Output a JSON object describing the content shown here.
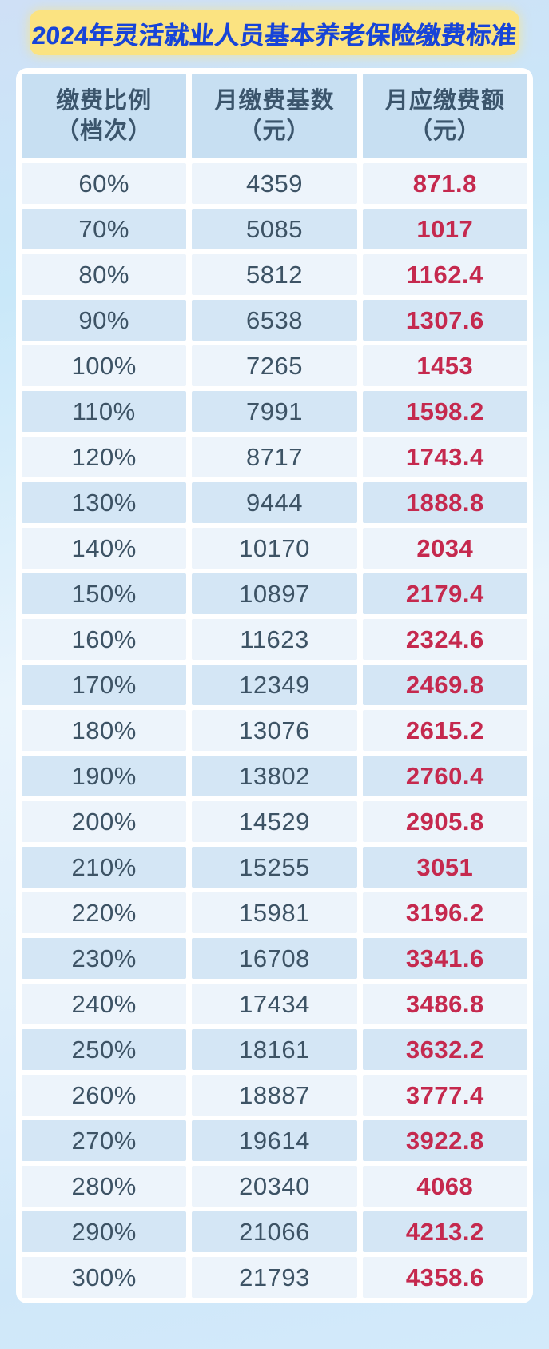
{
  "header": {
    "title": "2024年灵活就业人员基本养老保险缴费标准"
  },
  "chart_data": {
    "type": "table",
    "title": "2024年灵活就业人员基本养老保险缴费标准",
    "columns": [
      {
        "title": "缴费比例",
        "unit": "（档次）"
      },
      {
        "title": "月缴费基数",
        "unit": "（元）"
      },
      {
        "title": "月应缴费额",
        "unit": "（元）"
      }
    ],
    "rows": [
      {
        "ratio": "60%",
        "base": "4359",
        "amount": "871.8"
      },
      {
        "ratio": "70%",
        "base": "5085",
        "amount": "1017"
      },
      {
        "ratio": "80%",
        "base": "5812",
        "amount": "1162.4"
      },
      {
        "ratio": "90%",
        "base": "6538",
        "amount": "1307.6"
      },
      {
        "ratio": "100%",
        "base": "7265",
        "amount": "1453"
      },
      {
        "ratio": "110%",
        "base": "7991",
        "amount": "1598.2"
      },
      {
        "ratio": "120%",
        "base": "8717",
        "amount": "1743.4"
      },
      {
        "ratio": "130%",
        "base": "9444",
        "amount": "1888.8"
      },
      {
        "ratio": "140%",
        "base": "10170",
        "amount": "2034"
      },
      {
        "ratio": "150%",
        "base": "10897",
        "amount": "2179.4"
      },
      {
        "ratio": "160%",
        "base": "11623",
        "amount": "2324.6"
      },
      {
        "ratio": "170%",
        "base": "12349",
        "amount": "2469.8"
      },
      {
        "ratio": "180%",
        "base": "13076",
        "amount": "2615.2"
      },
      {
        "ratio": "190%",
        "base": "13802",
        "amount": "2760.4"
      },
      {
        "ratio": "200%",
        "base": "14529",
        "amount": "2905.8"
      },
      {
        "ratio": "210%",
        "base": "15255",
        "amount": "3051"
      },
      {
        "ratio": "220%",
        "base": "15981",
        "amount": "3196.2"
      },
      {
        "ratio": "230%",
        "base": "16708",
        "amount": "3341.6"
      },
      {
        "ratio": "240%",
        "base": "17434",
        "amount": "3486.8"
      },
      {
        "ratio": "250%",
        "base": "18161",
        "amount": "3632.2"
      },
      {
        "ratio": "260%",
        "base": "18887",
        "amount": "3777.4"
      },
      {
        "ratio": "270%",
        "base": "19614",
        "amount": "3922.8"
      },
      {
        "ratio": "280%",
        "base": "20340",
        "amount": "4068"
      },
      {
        "ratio": "290%",
        "base": "21066",
        "amount": "4213.2"
      },
      {
        "ratio": "300%",
        "base": "21793",
        "amount": "4358.6"
      }
    ]
  },
  "colors": {
    "banner_bg": "#fbe381",
    "title_text": "#1744d8",
    "header_cell_bg": "#c7dff2",
    "row_light_bg": "#edf4fb",
    "row_dark_bg": "#d4e6f5",
    "body_text": "#3d5365",
    "amount_text": "#c5294e",
    "card_bg": "#ffffff",
    "page_bg_top": "#cfe0f6",
    "page_bg_bottom": "#d3eafa"
  }
}
